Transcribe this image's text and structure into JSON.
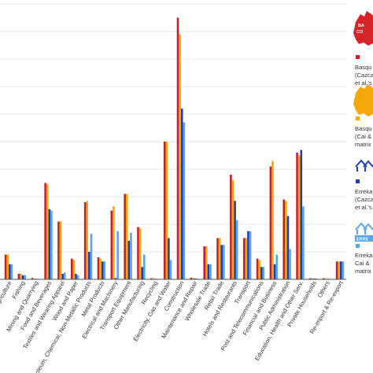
{
  "chart_data": {
    "type": "bar",
    "title": "",
    "xlabel": "",
    "ylabel": "",
    "grid": true,
    "legend_position": "right",
    "ylim": [
      0,
      100
    ],
    "categories": [
      "Agriculture",
      "Fishing",
      "Mining and Quarrying",
      "Food and Beverages",
      "Textiles and Wearing Apparel",
      "Wood and Paper",
      "Petroleum, Chemical, Non-Metallic Products",
      "Metal Products",
      "Electrical and Machinery",
      "Transport Equipment",
      "Other Manufacturing",
      "Recycling",
      "Electricity, Gas and Water",
      "Construction",
      "Maintenance and Repair",
      "Wholesale Trade",
      "Retail Trade",
      "Hotels and Restaurants",
      "Transport",
      "Post and Telecommunications",
      "Financial and Business",
      "Public Administration",
      "Education, Health and Other Serv.",
      "Private Households",
      "Others",
      "Re-import & Re-export"
    ],
    "series": [
      {
        "name": "Basque Country (Cazcarro et al.'s matrix)",
        "color": "#c81e2a",
        "values": [
          9,
          2,
          0.5,
          35,
          21,
          7.5,
          28,
          8,
          25,
          31,
          19,
          0.4,
          50,
          95,
          0.6,
          12,
          15,
          38,
          15,
          7.5,
          41,
          29,
          46,
          0.4,
          0.4,
          6.5
        ]
      },
      {
        "name": "Basque Country (Cai & ... matrix)",
        "color": "#f5a80c",
        "values": [
          9,
          2,
          0.3,
          34.5,
          21,
          7,
          28.5,
          7.5,
          26.5,
          31,
          18.5,
          0.4,
          50,
          89,
          0.5,
          12,
          15,
          36,
          15,
          7,
          43,
          28.5,
          45,
          0.3,
          0.3,
          6.5
        ]
      },
      {
        "name": "Errekaleor (Cazcarro et al.'s matrix)",
        "color": "#1f3db8",
        "values": [
          5.5,
          1.5,
          0.2,
          25.5,
          2,
          2,
          10,
          6.5,
          0.5,
          14,
          4.5,
          0.2,
          15,
          62,
          0.3,
          5.5,
          12.5,
          28.5,
          17.5,
          4.5,
          5.5,
          23,
          47,
          0.3,
          0.2,
          6.5
        ]
      },
      {
        "name": "Errekaleor (Cai & ... matrix)",
        "color": "#5aa4e8",
        "values": [
          5.5,
          1.5,
          0.2,
          25,
          2.5,
          1.5,
          16.5,
          6.5,
          17.5,
          17,
          9,
          0.2,
          7,
          57,
          0.3,
          5.5,
          12.5,
          21.5,
          17.5,
          4.5,
          9,
          11,
          26.5,
          0.3,
          0.2,
          6.5
        ]
      }
    ]
  },
  "legend": {
    "entries": [
      {
        "logo": "Basque Country",
        "lines": [
          "Basqu",
          "(Cazca",
          "et al.'s"
        ]
      },
      {
        "logo": "Basque Country",
        "lines": [
          "Basqu",
          "(Cai &",
          "matrix"
        ]
      },
      {
        "logo": "ERREKALEOR",
        "lines": [
          "Erreka",
          "(Cazca",
          "et al.'s"
        ]
      },
      {
        "logo": "ERREKALEOR",
        "lines": [
          "Erreka",
          "Cai &",
          "matrix"
        ]
      }
    ]
  }
}
